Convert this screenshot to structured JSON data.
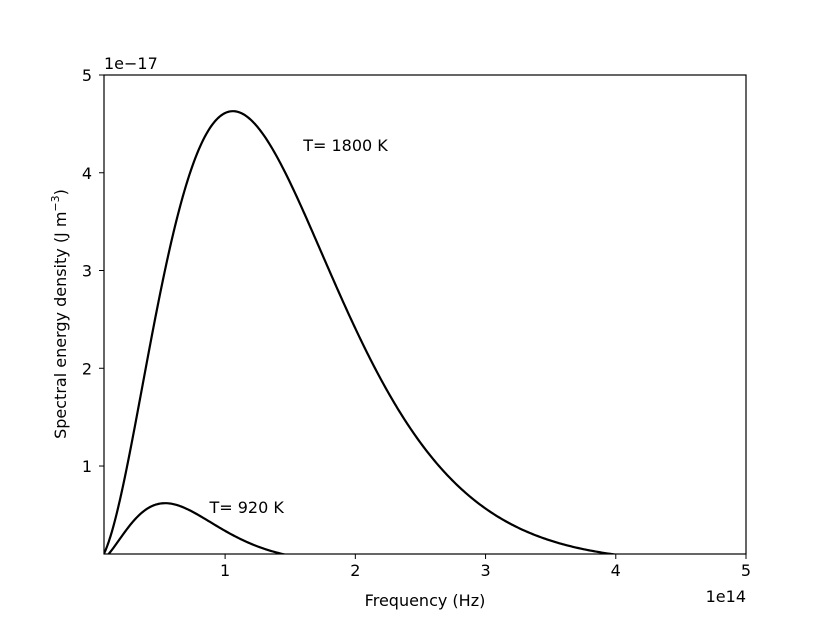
{
  "chart_data": {
    "type": "line",
    "xlabel": "Frequency (Hz)",
    "ylabel_main": "Spectral energy density (J m",
    "ylabel_sup": "−3",
    "ylabel_close": ")",
    "x_offset_label": "1e14",
    "y_offset_label": "1e−17",
    "xlim": [
      0.07,
      5.0
    ],
    "ylim": [
      0.1,
      5.0
    ],
    "x_ticks": [
      {
        "value": 1,
        "label": "1"
      },
      {
        "value": 2,
        "label": "2"
      },
      {
        "value": 3,
        "label": "3"
      },
      {
        "value": 4,
        "label": "4"
      },
      {
        "value": 5,
        "label": "5"
      }
    ],
    "y_ticks": [
      {
        "value": 1,
        "label": "1"
      },
      {
        "value": 2,
        "label": "2"
      },
      {
        "value": 3,
        "label": "3"
      },
      {
        "value": 4,
        "label": "4"
      },
      {
        "value": 5,
        "label": "5"
      }
    ],
    "series": [
      {
        "temperature_K": 1800,
        "annotation": "T= 1800 K",
        "annotation_at": [
          1.6,
          4.22
        ],
        "peak_x": 1.06,
        "peak_y": 4.63,
        "color": "#000000"
      },
      {
        "temperature_K": 920,
        "annotation": "T= 920 K",
        "annotation_at": [
          0.88,
          0.52
        ],
        "peak_x": 0.54,
        "peak_y": 0.62,
        "color": "#000000"
      }
    ]
  }
}
